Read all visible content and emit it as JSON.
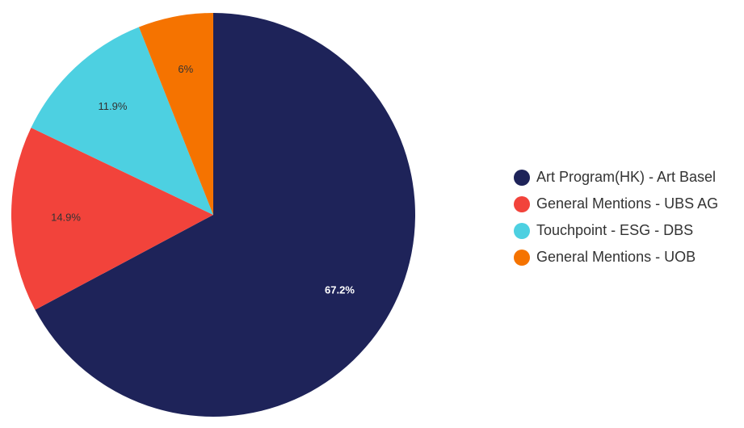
{
  "chart_data": {
    "type": "pie",
    "title": "",
    "legend_position": "right",
    "slices": [
      {
        "label": "Art Program(HK) - Art Basel",
        "value": 67.2,
        "display": "67.2%",
        "color": "#1e2359",
        "label_color": "#ffffff"
      },
      {
        "label": "General Mentions - UBS AG",
        "value": 14.9,
        "display": "14.9%",
        "color": "#f2433b",
        "label_color": "#333333"
      },
      {
        "label": "Touchpoint - ESG - DBS",
        "value": 11.9,
        "display": "11.9%",
        "color": "#4dd0e1",
        "label_color": "#333333"
      },
      {
        "label": "General Mentions - UOB",
        "value": 6,
        "display": "6%",
        "color": "#f57300",
        "label_color": "#333333"
      }
    ]
  }
}
